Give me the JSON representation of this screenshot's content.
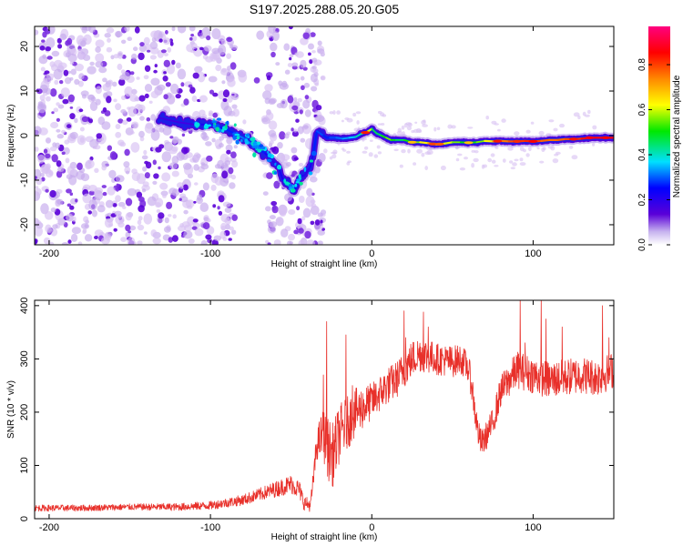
{
  "title": "S197.2025.288.05.20.G05",
  "colors": {
    "snr_line": "#e8302a",
    "ridge": "#1e1ee6",
    "scatter_dark": "#5a00d8",
    "scatter_light": "#d7c0f2"
  },
  "chart_data": [
    {
      "type": "heatmap",
      "name": "spectrogram",
      "xlabel": "Height of straight line (km)",
      "ylabel": "Frequency (Hz)",
      "xlim": [
        -209,
        150
      ],
      "ylim": [
        -24.5,
        24.5
      ],
      "xticks": [
        -200,
        -100,
        0,
        100
      ],
      "yticks": [
        -20,
        -10,
        0,
        10,
        20
      ],
      "colorbar": {
        "label": "Normalized spectral amplitude",
        "range": [
          0.0,
          0.97
        ],
        "ticks": [
          "0.0",
          "0.2",
          "0.4",
          "0.6",
          "0.8"
        ],
        "tick_values": [
          0.0,
          0.2,
          0.4,
          0.6,
          0.8
        ]
      },
      "ridge": {
        "x": [
          -132,
          -120,
          -110,
          -100,
          -95,
          -90,
          -85,
          -80,
          -76,
          -73,
          -70,
          -66,
          -62,
          -58,
          -55,
          -52,
          -48,
          -44,
          -42,
          -40,
          -38,
          -36,
          -34,
          -32,
          -30,
          -28,
          -26,
          -22,
          -18,
          -14,
          -10,
          -6,
          -3,
          0,
          3,
          6,
          9,
          12,
          15,
          20,
          25,
          30,
          35,
          40,
          45,
          50,
          55,
          60,
          65,
          70,
          75,
          80,
          85,
          90,
          95,
          100,
          105,
          110,
          115,
          120,
          125,
          130,
          135,
          140,
          145,
          150
        ],
        "y": [
          4.0,
          3.0,
          2.5,
          2.5,
          2.0,
          1.3,
          0.5,
          -0.5,
          -1.5,
          -2.5,
          -3.0,
          -4.0,
          -5.5,
          -7.0,
          -10.0,
          -11.0,
          -12.5,
          -9.0,
          -9.0,
          -8.0,
          -7.0,
          -3.5,
          1.0,
          0.5,
          0.0,
          -0.5,
          -0.5,
          -0.5,
          -0.7,
          -0.5,
          -0.3,
          0.5,
          0.8,
          1.5,
          0.5,
          0.0,
          -0.5,
          -1.0,
          -1.0,
          -1.0,
          -1.5,
          -1.5,
          -1.7,
          -2.0,
          -1.8,
          -1.5,
          -1.5,
          -1.6,
          -1.5,
          -1.2,
          -1.3,
          -1.2,
          -1.3,
          -1.3,
          -1.2,
          -1.3,
          -1.2,
          -1.0,
          -1.0,
          -0.8,
          -0.8,
          -0.7,
          -0.5,
          -0.5,
          -0.5,
          -0.5
        ],
        "amplitude": [
          0.2,
          0.15,
          0.2,
          0.25,
          0.3,
          0.25,
          0.3,
          0.35,
          0.3,
          0.35,
          0.3,
          0.25,
          0.2,
          0.2,
          0.25,
          0.3,
          0.28,
          0.25,
          0.2,
          0.2,
          0.2,
          0.25,
          0.3,
          0.3,
          0.3,
          0.25,
          0.3,
          0.3,
          0.35,
          0.35,
          0.4,
          0.45,
          0.75,
          0.5,
          0.45,
          0.5,
          0.55,
          0.6,
          0.45,
          0.5,
          0.55,
          0.6,
          0.7,
          0.78,
          0.65,
          0.6,
          0.55,
          0.5,
          0.55,
          0.6,
          0.7,
          0.75,
          0.8,
          0.82,
          0.85,
          0.85,
          0.8,
          0.78,
          0.78,
          0.8,
          0.82,
          0.85,
          0.88,
          0.9,
          0.9,
          0.88
        ]
      },
      "scatter_region": {
        "x_start": -209,
        "x_end": -30,
        "gap_x_start": -84,
        "gap_x_end": -66,
        "outlier_x_end": 20
      }
    },
    {
      "type": "line",
      "name": "snr",
      "xlabel": "Height of straight line (km)",
      "ylabel": "SNR (10 * v/v)",
      "xlim": [
        -209,
        150
      ],
      "ylim": [
        0,
        410
      ],
      "xticks": [
        -200,
        -100,
        0,
        100
      ],
      "yticks": [
        0,
        100,
        200,
        300,
        400
      ],
      "color": "#e8302a",
      "x": [
        -209,
        -180,
        -150,
        -120,
        -100,
        -90,
        -80,
        -70,
        -60,
        -50,
        -45,
        -42,
        -38,
        -36,
        -34,
        -32,
        -30,
        -27,
        -24,
        -20,
        -15,
        -10,
        -5,
        0,
        5,
        10,
        15,
        20,
        25,
        30,
        40,
        50,
        55,
        58,
        60,
        62,
        64,
        66,
        68,
        70,
        75,
        80,
        90,
        100,
        110,
        120,
        130,
        140,
        150
      ],
      "y": [
        20,
        20,
        22,
        22,
        25,
        30,
        35,
        45,
        55,
        65,
        55,
        30,
        25,
        80,
        140,
        150,
        160,
        130,
        120,
        160,
        180,
        200,
        210,
        220,
        235,
        250,
        260,
        280,
        300,
        310,
        300,
        295,
        300,
        290,
        280,
        250,
        200,
        160,
        140,
        150,
        180,
        240,
        280,
        270,
        260,
        265,
        270,
        265,
        280
      ],
      "noise": [
        6,
        6,
        6,
        7,
        8,
        9,
        10,
        12,
        15,
        18,
        18,
        14,
        12,
        20,
        30,
        40,
        50,
        60,
        60,
        55,
        50,
        45,
        40,
        35,
        35,
        35,
        35,
        35,
        35,
        35,
        30,
        30,
        28,
        28,
        28,
        28,
        28,
        26,
        26,
        26,
        28,
        30,
        35,
        35,
        35,
        35,
        35,
        35,
        35
      ],
      "spikes": [
        {
          "x": -28,
          "y": 370
        },
        {
          "x": -30,
          "y": 270
        },
        {
          "x": -16,
          "y": 345
        },
        {
          "x": -12,
          "y": 250
        },
        {
          "x": 20,
          "y": 390
        },
        {
          "x": 21,
          "y": 340
        },
        {
          "x": 32,
          "y": 388
        },
        {
          "x": 35,
          "y": 360
        },
        {
          "x": 92,
          "y": 410
        },
        {
          "x": 95,
          "y": 330
        },
        {
          "x": 105,
          "y": 410
        },
        {
          "x": 108,
          "y": 375
        },
        {
          "x": 118,
          "y": 360
        },
        {
          "x": 143,
          "y": 400
        },
        {
          "x": 147,
          "y": 340
        }
      ]
    }
  ]
}
